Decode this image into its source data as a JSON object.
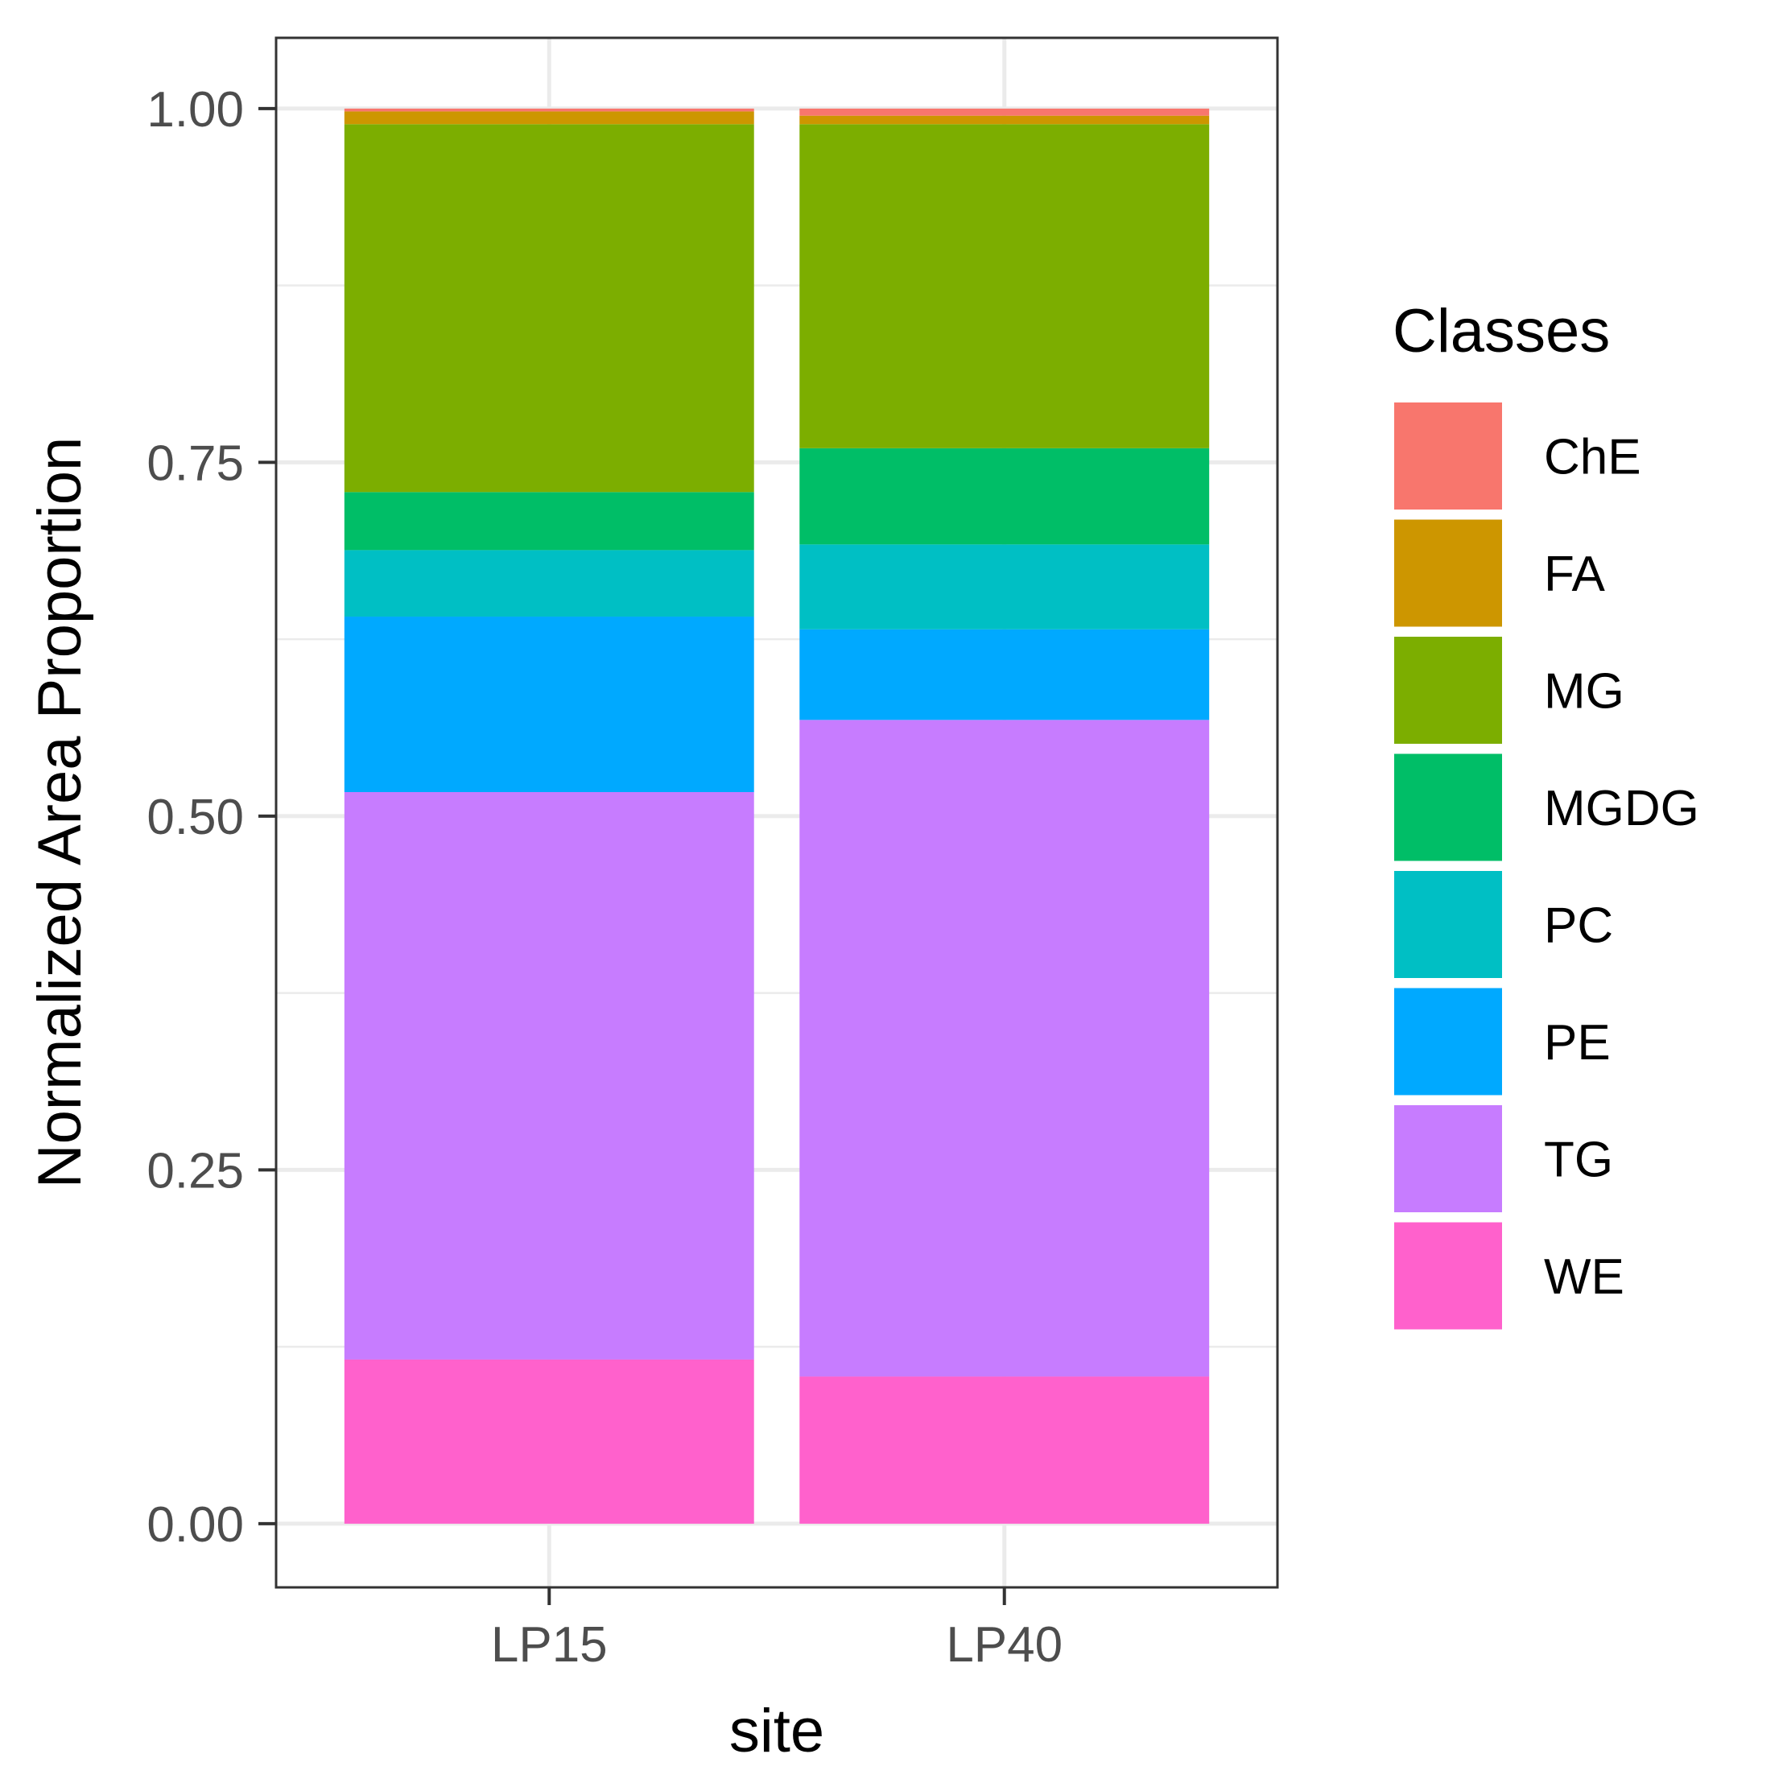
{
  "chart_data": {
    "type": "bar",
    "stacked": true,
    "categories": [
      "LP15",
      "LP40"
    ],
    "xlabel": "site",
    "ylabel": "Normalized Area Proportion",
    "ylim": [
      -0.045,
      1.05
    ],
    "yticks": [
      0.0,
      0.25,
      0.5,
      0.75,
      1.0
    ],
    "ytick_labels": [
      "0.00",
      "0.25",
      "0.50",
      "0.75",
      "1.00"
    ],
    "grid": true,
    "legend": {
      "title": "Classes",
      "position": "right"
    },
    "series": [
      {
        "name": "WE",
        "color": "#FF61CC",
        "values": [
          0.116,
          0.104
        ]
      },
      {
        "name": "TG",
        "color": "#C77CFF",
        "values": [
          0.401,
          0.464
        ]
      },
      {
        "name": "PE",
        "color": "#00A9FF",
        "values": [
          0.124,
          0.064
        ]
      },
      {
        "name": "PC",
        "color": "#00BFC4",
        "values": [
          0.047,
          0.06
        ]
      },
      {
        "name": "MGDG",
        "color": "#00BE67",
        "values": [
          0.041,
          0.068
        ]
      },
      {
        "name": "MG",
        "color": "#7CAE00",
        "values": [
          0.26,
          0.229
        ]
      },
      {
        "name": "FA",
        "color": "#CD9600",
        "values": [
          0.009,
          0.006
        ]
      },
      {
        "name": "ChE",
        "color": "#F8766D",
        "values": [
          0.002,
          0.005
        ]
      }
    ],
    "legend_order": [
      "ChE",
      "FA",
      "MG",
      "MGDG",
      "PC",
      "PE",
      "TG",
      "WE"
    ]
  }
}
